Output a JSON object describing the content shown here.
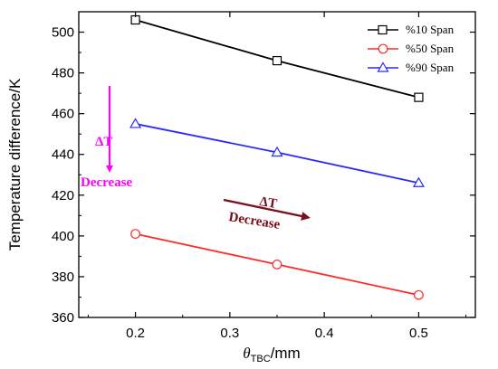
{
  "chart_data": {
    "type": "line",
    "xlabel_symbol": "θ",
    "xlabel_subscript": "TBC",
    "xlabel_unit": "/mm",
    "ylabel": "Temperature difference/K",
    "xlim": [
      0.14,
      0.56
    ],
    "ylim": [
      360,
      510
    ],
    "xticks": [
      0.2,
      0.3,
      0.4,
      0.5
    ],
    "xtick_labels": [
      "0.2",
      "0.3",
      "0.4",
      "0.5"
    ],
    "yticks": [
      360,
      380,
      400,
      420,
      440,
      460,
      480,
      500
    ],
    "ytick_labels": [
      "360",
      "380",
      "400",
      "420",
      "440",
      "460",
      "480",
      "500"
    ],
    "legend_position": "top-right",
    "series": [
      {
        "name": "%10 Span",
        "color": "#000000",
        "marker": "square",
        "x": [
          0.2,
          0.35,
          0.5
        ],
        "y": [
          506,
          486,
          468
        ]
      },
      {
        "name": "%50 Span",
        "color": "#ff2a2a",
        "marker": "circle",
        "x": [
          0.2,
          0.35,
          0.5
        ],
        "y": [
          401,
          386,
          371
        ]
      },
      {
        "name": "%90 Span",
        "color": "#2a2aff",
        "marker": "triangle",
        "x": [
          0.2,
          0.35,
          0.5
        ],
        "y": [
          455,
          441,
          426
        ]
      }
    ],
    "annotations": [
      {
        "line1": "ΔT",
        "line2": "Decrease",
        "color": "#ff00ff"
      },
      {
        "line1": "ΔT",
        "line2": "Decrease",
        "color": "#7b0f1a"
      }
    ]
  }
}
